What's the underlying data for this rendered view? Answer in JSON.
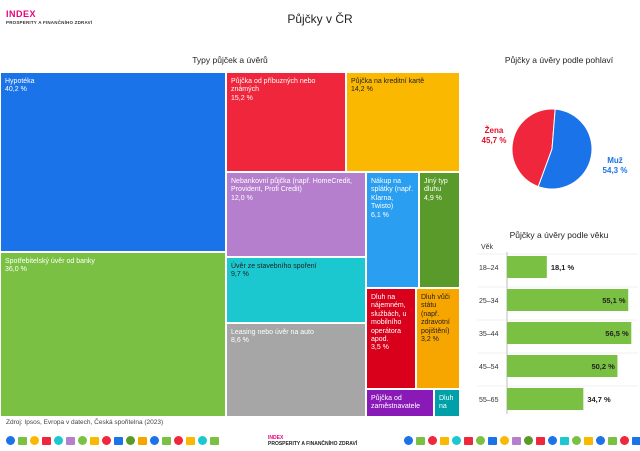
{
  "logo": {
    "word": "INDEX",
    "subtitle": "PROSPERITY A FINANČNÍHO ZDRAVÍ"
  },
  "title": "Půjčky v ČR",
  "chart_data": [
    {
      "type": "treemap",
      "title": "Typy půjček a úvěrů",
      "unit": "%",
      "items": [
        {
          "label": "Hypotéka",
          "value": 40.2,
          "value_text": "40,2 %",
          "color": "#1a73e8"
        },
        {
          "label": "Spotřebitelský úvěr od banky",
          "value": 36.0,
          "value_text": "36,0 %",
          "color": "#7ac143"
        },
        {
          "label": "Půjčka od příbuzných nebo známých",
          "value": 15.2,
          "value_text": "15,2 %",
          "color": "#f0263c"
        },
        {
          "label": "Půjčka na kreditní kartě",
          "value": 14.2,
          "value_text": "14,2 %",
          "color": "#fbb800"
        },
        {
          "label": "Nebankovní půjčka (např. HomeCredit, Provident, Profi Credit)",
          "value": 12.0,
          "value_text": "12,0 %",
          "color": "#b57fce"
        },
        {
          "label": "Nákup na splátky (např. Klarna, Twisto)",
          "value": 6.1,
          "value_text": "6,1 %",
          "color": "#2a9ef0"
        },
        {
          "label": "Jiný typ dluhu",
          "value": 4.9,
          "value_text": "4,9 %",
          "color": "#5a9a2a"
        },
        {
          "label": "Úvěr ze stavebního spoření",
          "value": 9.7,
          "value_text": "9,7 %",
          "color": "#1cc8d0"
        },
        {
          "label": "Leasing nebo úvěr na auto",
          "value": 8.6,
          "value_text": "8,6 %",
          "color": "#a6a6a6"
        },
        {
          "label": "Dluh na nájemném, službách, u mobilního operátora apod.",
          "value": 3.5,
          "value_text": "3,5 %",
          "color": "#d9001b"
        },
        {
          "label": "Dluh vůči státu (např. zdravotní pojištění)",
          "value": 3.2,
          "value_text": "3,2 %",
          "color": "#f7a600"
        },
        {
          "label": "Půjčka od zaměstnavatele",
          "value": 2.5,
          "value_text": "",
          "color": "#8a1ab8"
        },
        {
          "label": "Dluh na",
          "value": 1.6,
          "value_text": "",
          "color": "#00a0a8"
        }
      ]
    },
    {
      "type": "pie",
      "title": "Půjčky a úvěry podle pohlaví",
      "slices": [
        {
          "name": "Žena",
          "value": 45.7,
          "value_text": "45,7 %",
          "color": "#f0263c"
        },
        {
          "name": "Muž",
          "value": 54.3,
          "value_text": "54,3 %",
          "color": "#1a73e8"
        }
      ]
    },
    {
      "type": "bar",
      "orientation": "horizontal",
      "title": "Půjčky a úvěry podle věku",
      "axis_label": "Věk",
      "categories": [
        "18–24",
        "25–34",
        "35–44",
        "45–54",
        "55–65"
      ],
      "values": [
        18.1,
        55.1,
        56.5,
        50.2,
        34.7
      ],
      "value_texts": [
        "18,1 %",
        "55,1 %",
        "56,5 %",
        "50,2 %",
        "34,7 %"
      ],
      "color": "#7ac143",
      "xlim": [
        0,
        60
      ]
    }
  ],
  "source": "Zdroj: Ipsos, Evropa v datech, Česká spořitelna (2023)",
  "footer": {
    "word": "INDEX",
    "subtitle": "PROSPERITY A FINANČNÍHO ZDRAVÍ"
  }
}
